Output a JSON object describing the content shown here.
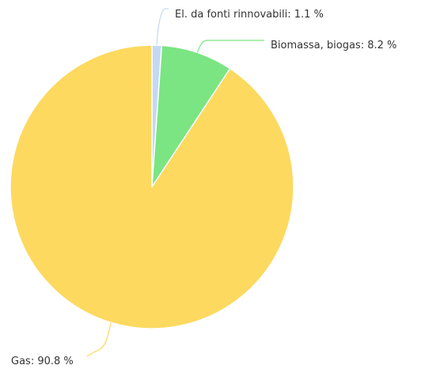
{
  "chart_data": {
    "type": "pie",
    "slices": [
      {
        "name": "El. da fonti rinnovabili",
        "value": 1.1,
        "label": "El. da fonti rinnovabili: 1.1 %",
        "color": "#c5d8f2"
      },
      {
        "name": "Biomassa, biogas",
        "value": 8.2,
        "label": "Biomassa, biogas: 8.2 %",
        "color": "#7ae582"
      },
      {
        "name": "Gas",
        "value": 90.8,
        "label": "Gas: 90.8 %",
        "color": "#fdd95f"
      }
    ],
    "title": "",
    "legend": "none",
    "start_angle": "top, clockwise"
  }
}
